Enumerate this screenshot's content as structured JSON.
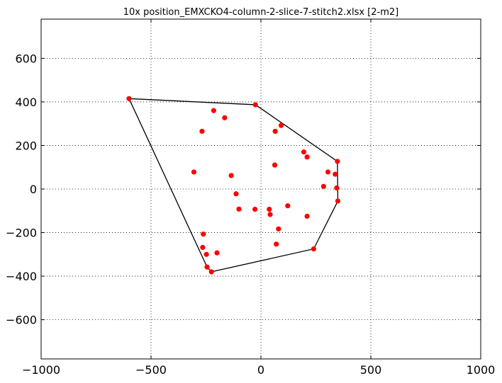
{
  "chart_data": {
    "type": "scatter",
    "title": "10x position_EMXCKO4-column-2-slice-7-stitch2.xlsx   [2-m2]",
    "xlabel": "",
    "ylabel": "",
    "xlim": [
      -1000,
      1000
    ],
    "ylim": [
      -780,
      780
    ],
    "xticks": [
      -1000,
      -500,
      0,
      500,
      1000
    ],
    "xtick_labels": [
      "−1000",
      "−500",
      "0",
      "500",
      "1000"
    ],
    "yticks": [
      -600,
      -400,
      -200,
      0,
      200,
      400,
      600
    ],
    "ytick_labels": [
      "−600",
      "−400",
      "−200",
      "0",
      "200",
      "400",
      "600"
    ],
    "grid": true,
    "grid_style": "dotted",
    "point_color": "#ff0000",
    "hull_color": "#000000",
    "points": [
      {
        "x": -600,
        "y": 415
      },
      {
        "x": -25,
        "y": 387
      },
      {
        "x": -215,
        "y": 360
      },
      {
        "x": -165,
        "y": 327
      },
      {
        "x": 92,
        "y": 292
      },
      {
        "x": -268,
        "y": 265
      },
      {
        "x": 65,
        "y": 265
      },
      {
        "x": 195,
        "y": 170
      },
      {
        "x": 210,
        "y": 147
      },
      {
        "x": 348,
        "y": 127
      },
      {
        "x": 63,
        "y": 110
      },
      {
        "x": 305,
        "y": 78
      },
      {
        "x": -305,
        "y": 78
      },
      {
        "x": 338,
        "y": 68
      },
      {
        "x": -135,
        "y": 62
      },
      {
        "x": 285,
        "y": 12
      },
      {
        "x": 345,
        "y": 5
      },
      {
        "x": -113,
        "y": -22
      },
      {
        "x": 350,
        "y": -55
      },
      {
        "x": 122,
        "y": -77
      },
      {
        "x": -100,
        "y": -92
      },
      {
        "x": -27,
        "y": -93
      },
      {
        "x": 38,
        "y": -93
      },
      {
        "x": 42,
        "y": -117
      },
      {
        "x": 210,
        "y": -125
      },
      {
        "x": 80,
        "y": -183
      },
      {
        "x": -262,
        "y": -207
      },
      {
        "x": 70,
        "y": -253
      },
      {
        "x": -265,
        "y": -268
      },
      {
        "x": 240,
        "y": -275
      },
      {
        "x": -248,
        "y": -300
      },
      {
        "x": -200,
        "y": -293
      },
      {
        "x": -245,
        "y": -358
      },
      {
        "x": -225,
        "y": -380
      }
    ],
    "hull": [
      {
        "x": -600,
        "y": 415
      },
      {
        "x": -25,
        "y": 387
      },
      {
        "x": 348,
        "y": 127
      },
      {
        "x": 350,
        "y": -55
      },
      {
        "x": 240,
        "y": -275
      },
      {
        "x": -225,
        "y": -380
      },
      {
        "x": -245,
        "y": -358
      },
      {
        "x": -600,
        "y": 415
      }
    ]
  }
}
